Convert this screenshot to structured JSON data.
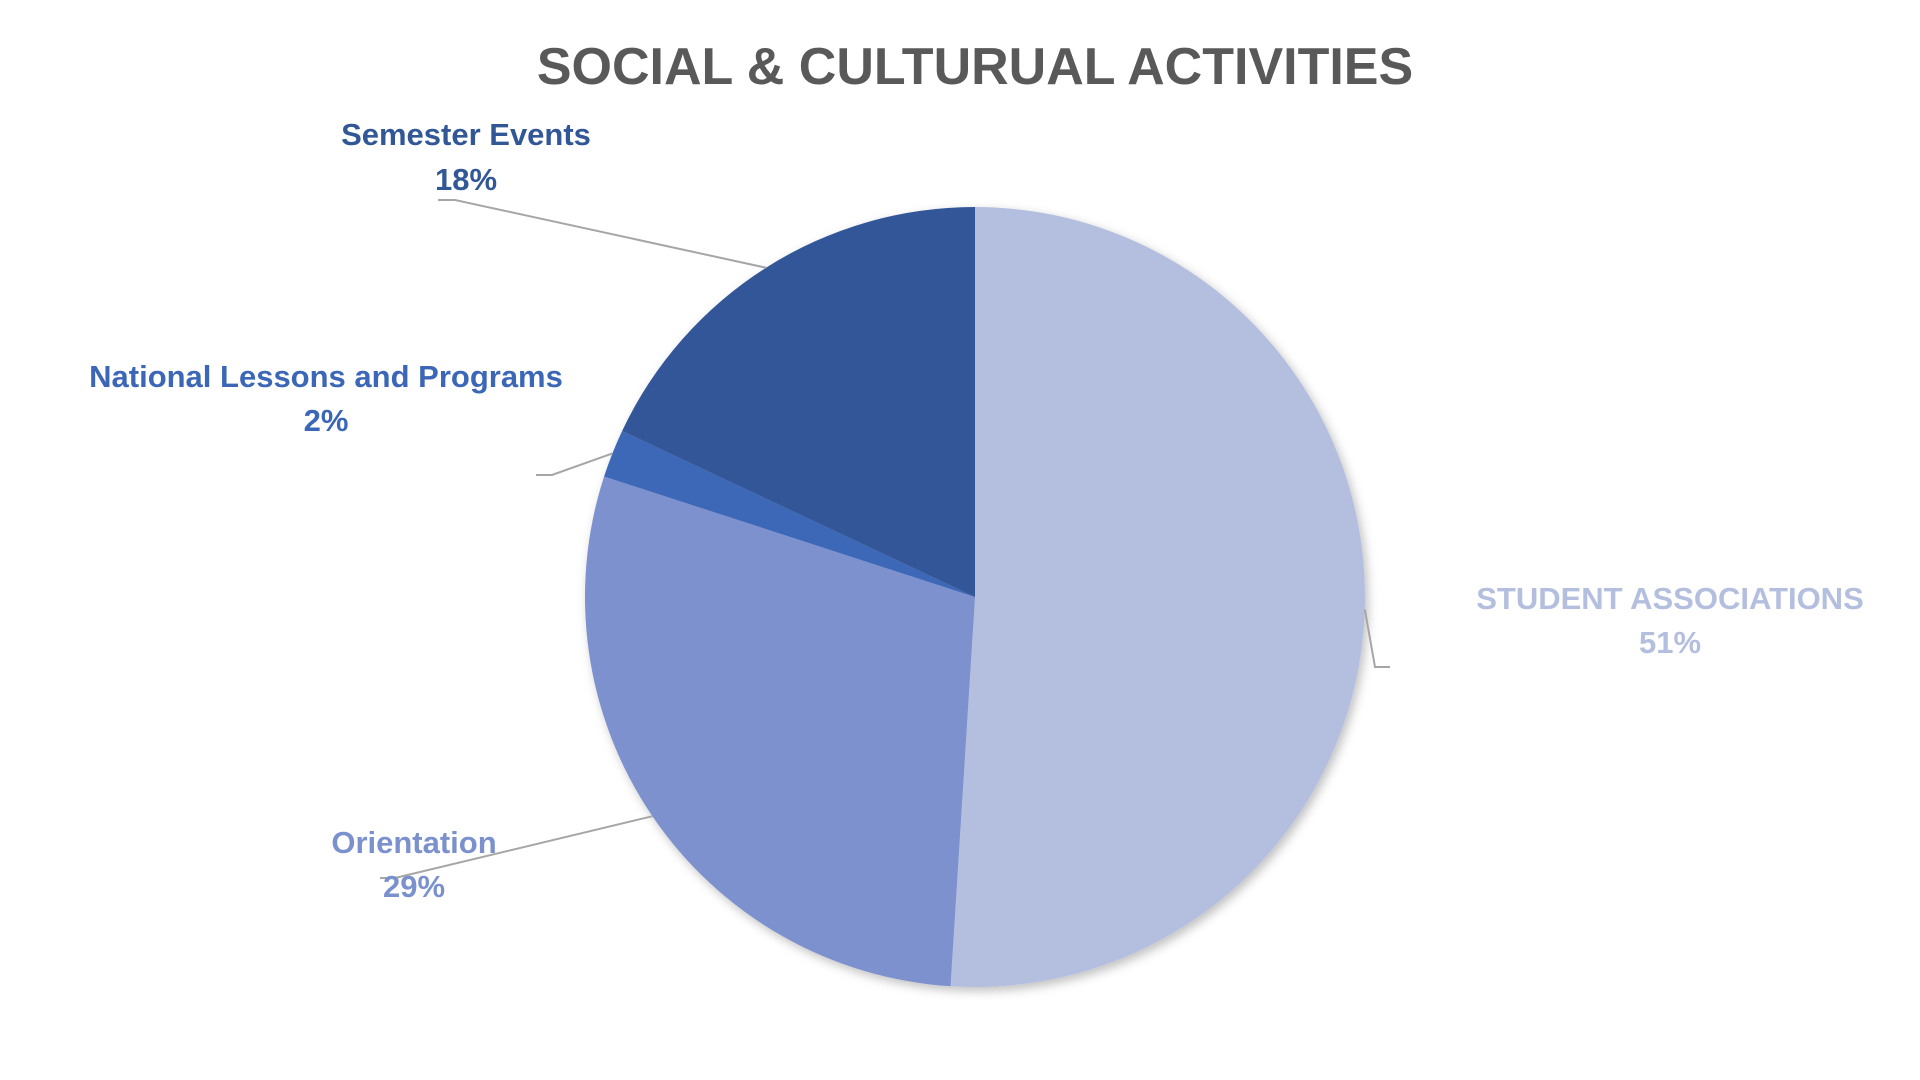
{
  "chart_data": {
    "type": "pie",
    "title": "SOCIAL & CULTURUAL ACTIVITIES",
    "slices": [
      {
        "label": "STUDENT ASSOCIATIONS",
        "value": 51,
        "percent_label": "51%",
        "color": "#b4bfdf",
        "label_color": "#b4bfdf"
      },
      {
        "label": "Orientation",
        "value": 29,
        "percent_label": "29%",
        "color": "#7b91cd",
        "label_color": "#7b91cd"
      },
      {
        "label": "National Lessons and Programs",
        "value": 2,
        "percent_label": "2%",
        "color": "#3c67b7",
        "label_color": "#3c67b7"
      },
      {
        "label": "Semester Events",
        "value": 18,
        "percent_label": "18%",
        "color": "#325797",
        "label_color": "#325797"
      }
    ],
    "start_angle_deg": 0,
    "direction": "clockwise",
    "labels_outside_with_leader_lines": true,
    "legend": "none"
  }
}
